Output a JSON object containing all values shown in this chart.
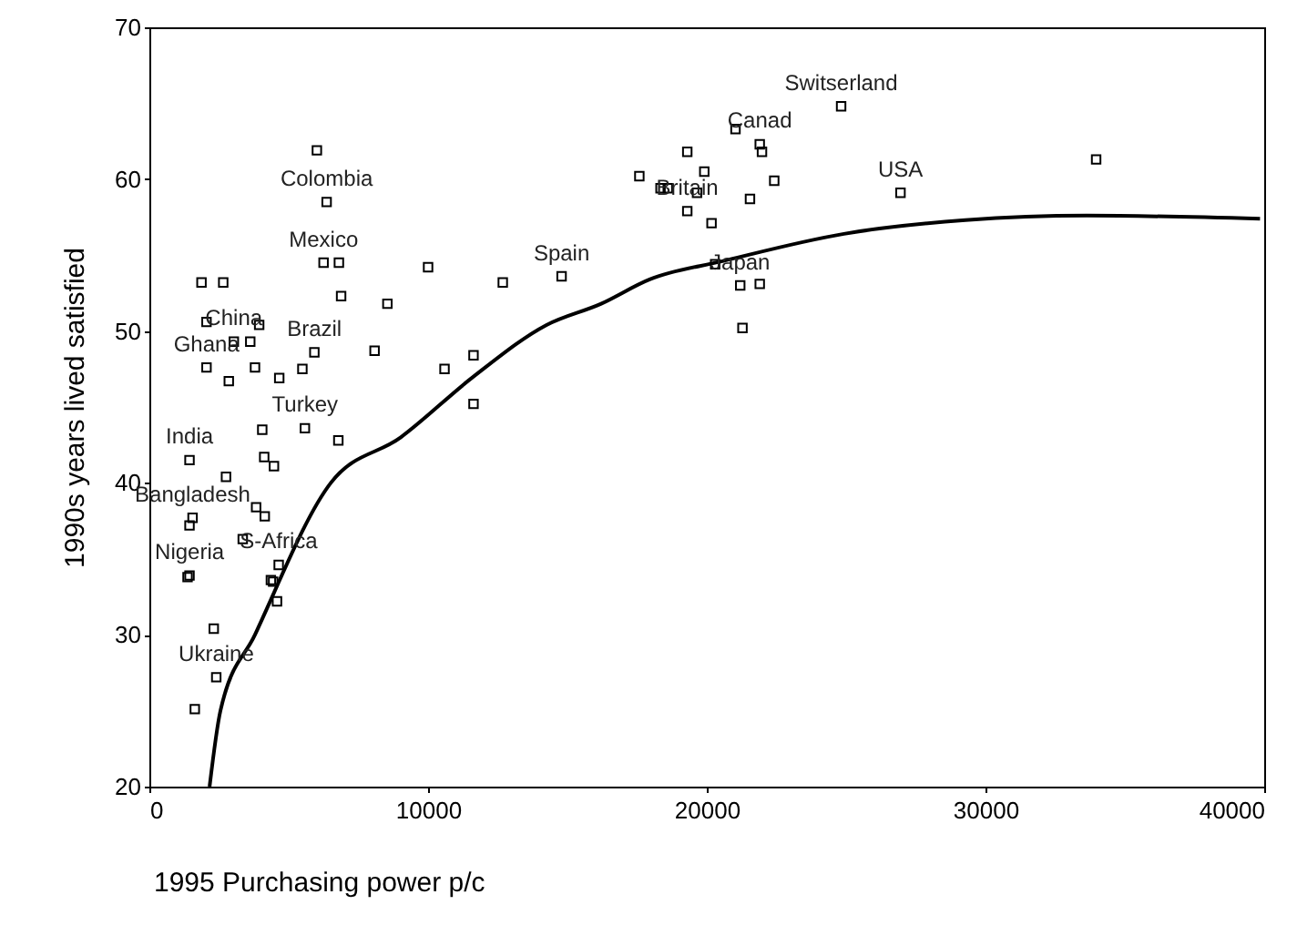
{
  "chart_data": {
    "type": "scatter",
    "xlabel": "1995 Purchasing power p/c",
    "ylabel": "1990s years lived satisfied",
    "xlim": [
      0,
      40000
    ],
    "ylim": [
      20,
      70
    ],
    "xticks": [
      0,
      10000,
      20000,
      30000,
      40000
    ],
    "yticks": [
      20,
      30,
      40,
      50,
      60,
      70
    ],
    "grid": false,
    "marker": "square",
    "series": [
      {
        "color": "#000000",
        "x": [
          6010,
          6360,
          6250,
          6800,
          1870,
          2650,
          6880,
          8540,
          10000,
          12680,
          2050,
          3940,
          3030,
          3620,
          5920,
          8080,
          11630,
          10590,
          2050,
          3790,
          2850,
          4660,
          5490,
          11630,
          4050,
          5580,
          6780,
          1440,
          2750,
          4120,
          4470,
          3830,
          4140,
          1550,
          1440,
          3350,
          4640,
          1370,
          1440,
          4360,
          4440,
          4580,
          2310,
          2400,
          1630,
          14790,
          17580,
          19300,
          19910,
          18340,
          18600,
          19650,
          19300,
          20170,
          21030,
          21900,
          21980,
          22420,
          21550,
          24820,
          26950,
          33970,
          20300,
          21200,
          21900,
          21280
        ],
        "values": [
          61.9,
          58.5,
          54.5,
          54.5,
          53.2,
          53.2,
          52.3,
          51.8,
          54.2,
          53.2,
          50.6,
          50.4,
          49.3,
          49.3,
          48.6,
          48.7,
          48.4,
          47.5,
          47.6,
          47.6,
          46.7,
          46.9,
          47.5,
          45.2,
          43.5,
          43.6,
          42.8,
          41.5,
          40.4,
          41.7,
          41.1,
          38.4,
          37.8,
          37.7,
          37.2,
          36.3,
          34.6,
          33.8,
          33.9,
          33.6,
          33.5,
          32.2,
          30.4,
          27.2,
          25.1,
          53.6,
          60.2,
          61.8,
          60.5,
          59.4,
          59.4,
          59.1,
          57.9,
          57.1,
          63.3,
          62.3,
          61.8,
          59.9,
          58.7,
          64.8,
          59.1,
          61.3,
          54.4,
          53.0,
          53.1,
          50.2
        ]
      },
      {
        "type": "line",
        "color": "#000000",
        "marker": "none",
        "line_style": "solid",
        "x": [
          2160,
          2550,
          3790,
          6510,
          9020,
          11630,
          14250,
          16210,
          17950,
          20560,
          24920,
          29280,
          33640,
          39850
        ],
        "values": [
          20.0,
          25.0,
          30.0,
          40.0,
          43.0,
          47.0,
          50.4,
          51.8,
          53.4,
          54.6,
          56.4,
          57.3,
          57.6,
          57.4
        ]
      }
    ],
    "annotations": [
      {
        "text": "Colombia",
        "x": 6360,
        "y": 58.5
      },
      {
        "text": "Mexico",
        "x": 6250,
        "y": 54.5
      },
      {
        "text": "China",
        "x": 3030,
        "y": 49.3
      },
      {
        "text": "Ghana",
        "x": 2050,
        "y": 47.6
      },
      {
        "text": "Brazil",
        "x": 5920,
        "y": 48.6
      },
      {
        "text": "Turkey",
        "x": 5580,
        "y": 43.6
      },
      {
        "text": "India",
        "x": 1440,
        "y": 41.5
      },
      {
        "text": "Bangladesh",
        "x": 1550,
        "y": 37.7
      },
      {
        "text": "Nigeria",
        "x": 1440,
        "y": 33.9
      },
      {
        "text": "S-Africa",
        "x": 4640,
        "y": 34.6
      },
      {
        "text": "Ukraine",
        "x": 2400,
        "y": 27.2
      },
      {
        "text": "Spain",
        "x": 14790,
        "y": 53.6
      },
      {
        "text": "Switserland",
        "x": 24820,
        "y": 64.8
      },
      {
        "text": "Canad",
        "x": 21900,
        "y": 62.3
      },
      {
        "text": "Britain",
        "x": 19300,
        "y": 57.9
      },
      {
        "text": "USA",
        "x": 26950,
        "y": 59.1
      },
      {
        "text": "Japan",
        "x": 21200,
        "y": 53.0
      }
    ]
  }
}
